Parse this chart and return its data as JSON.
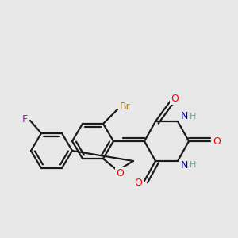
{
  "background_color": "#e8e8e8",
  "bond_color": "#1a1a1a",
  "atom_colors": {
    "Br": "#b8860b",
    "F": "#cc00cc",
    "O": "#ff0000",
    "N": "#0000cc",
    "H": "#7a9e9e",
    "C": "#1a1a1a"
  },
  "figsize": [
    3.0,
    3.0
  ],
  "dpi": 100
}
